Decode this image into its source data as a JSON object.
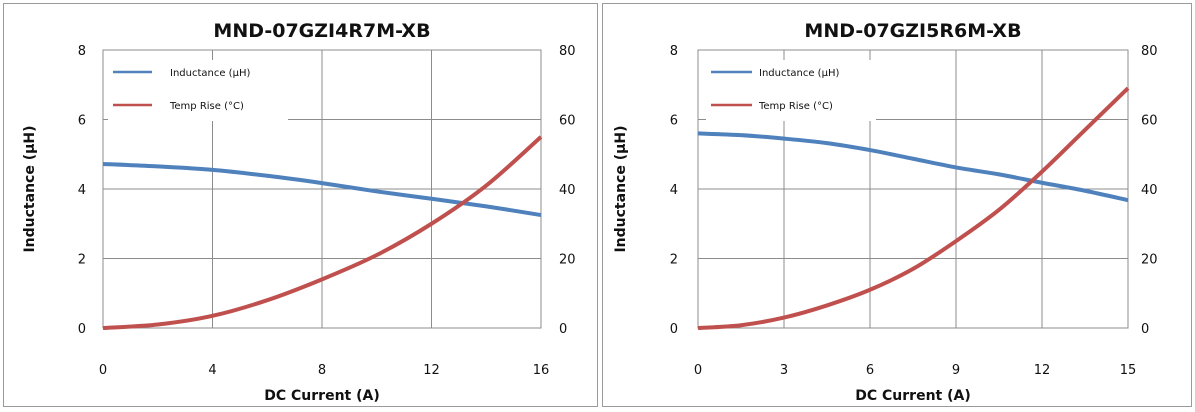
{
  "chart_data": [
    {
      "type": "line",
      "title": "MND-07GZI4R7M-XB",
      "xlabel": "DC Current (A)",
      "ylabel": "Inductance (µH)",
      "y2label": "",
      "xlim": [
        0,
        16
      ],
      "ylim": [
        0,
        8
      ],
      "y2lim": [
        0,
        80
      ],
      "x_ticks": [
        "0",
        "4",
        "8",
        "12",
        "16"
      ],
      "y_ticks": [
        "0",
        "2",
        "4",
        "6",
        "8"
      ],
      "y2_ticks": [
        "0",
        "20",
        "40",
        "60",
        "80"
      ],
      "grid": true,
      "legend_position": "top-left",
      "series": [
        {
          "name": "Inductance (µH)",
          "axis": "left",
          "color": "#4f81bd",
          "x": [
            0,
            2,
            4,
            6,
            8,
            10,
            12,
            14,
            16
          ],
          "y": [
            4.72,
            4.65,
            4.55,
            4.38,
            4.17,
            3.93,
            3.72,
            3.5,
            3.25
          ]
        },
        {
          "name": "Temp Rise (°C)",
          "axis": "right",
          "color": "#c0504d",
          "x": [
            0,
            2,
            4,
            6,
            8,
            10,
            12,
            14,
            16
          ],
          "y": [
            0,
            1,
            3.5,
            8,
            14,
            21,
            30,
            41,
            55
          ]
        }
      ]
    },
    {
      "type": "line",
      "title": "MND-07GZI5R6M-XB",
      "xlabel": "DC Current (A)",
      "ylabel": "Inductance (µH)",
      "y2label": "",
      "xlim": [
        0,
        15
      ],
      "ylim": [
        0,
        8
      ],
      "y2lim": [
        0,
        80
      ],
      "x_ticks": [
        "0",
        "3",
        "6",
        "9",
        "12",
        "15"
      ],
      "y_ticks": [
        "0",
        "2",
        "4",
        "6",
        "8"
      ],
      "y2_ticks": [
        "0",
        "20",
        "40",
        "60",
        "80"
      ],
      "grid": true,
      "legend_position": "top-left",
      "series": [
        {
          "name": "Inductance (µH)",
          "axis": "left",
          "color": "#4f81bd",
          "x": [
            0,
            1.5,
            3,
            4.5,
            6,
            7.5,
            9,
            10.5,
            12,
            13.5,
            15
          ],
          "y": [
            5.6,
            5.55,
            5.45,
            5.32,
            5.12,
            4.87,
            4.62,
            4.42,
            4.18,
            3.95,
            3.68
          ]
        },
        {
          "name": "Temp Rise (°C)",
          "axis": "right",
          "color": "#c0504d",
          "x": [
            0,
            1.5,
            3,
            4.5,
            6,
            7.5,
            9,
            10.5,
            12,
            13.5,
            15
          ],
          "y": [
            0,
            0.8,
            3,
            6.5,
            11,
            17,
            25,
            34,
            45,
            57,
            69
          ]
        }
      ]
    }
  ]
}
